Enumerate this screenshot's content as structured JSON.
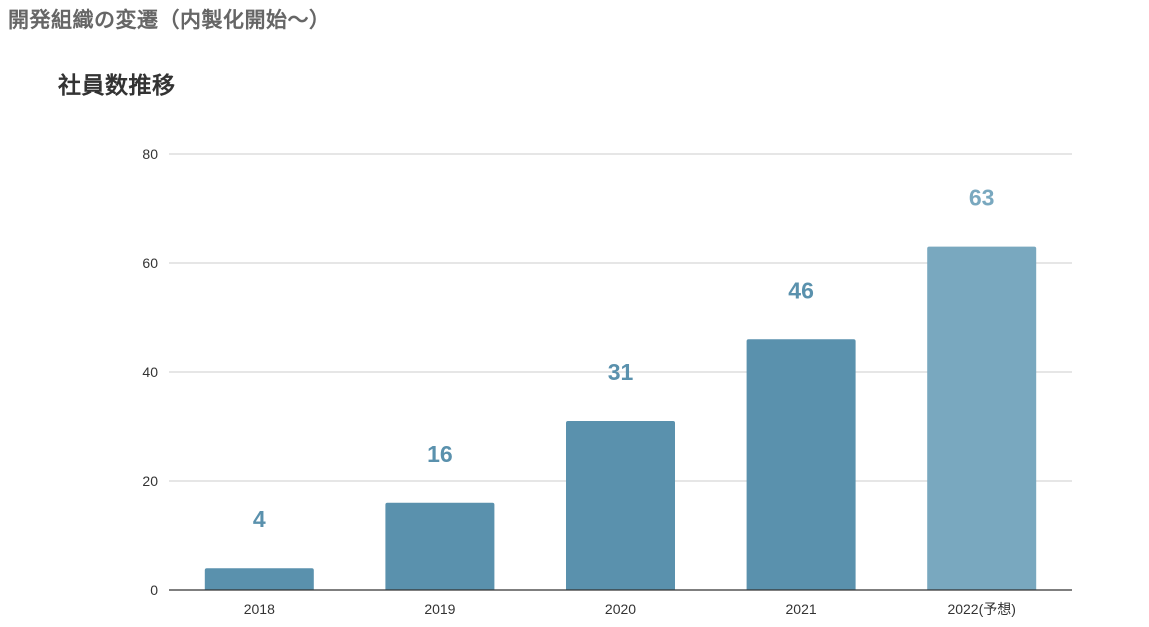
{
  "page": {
    "title": "開発組織の変遷（内製化開始〜）"
  },
  "chart_data": {
    "type": "bar",
    "title": "社員数推移",
    "xlabel": "",
    "ylabel": "",
    "categories": [
      "2018",
      "2019",
      "2020",
      "2021",
      "2022(予想)"
    ],
    "values": [
      4,
      16,
      31,
      46,
      63
    ],
    "ylim": [
      0,
      80
    ],
    "yticks": [
      0,
      20,
      40,
      60,
      80
    ],
    "grid": true,
    "legend": "none",
    "colors": {
      "bar": "#5a91ad",
      "bar_forecast": "#79a8bf",
      "data_label": "#5a91ad",
      "data_label_forecast": "#79a8bf",
      "gridline": "#cccccc",
      "axis": "#333333"
    }
  }
}
